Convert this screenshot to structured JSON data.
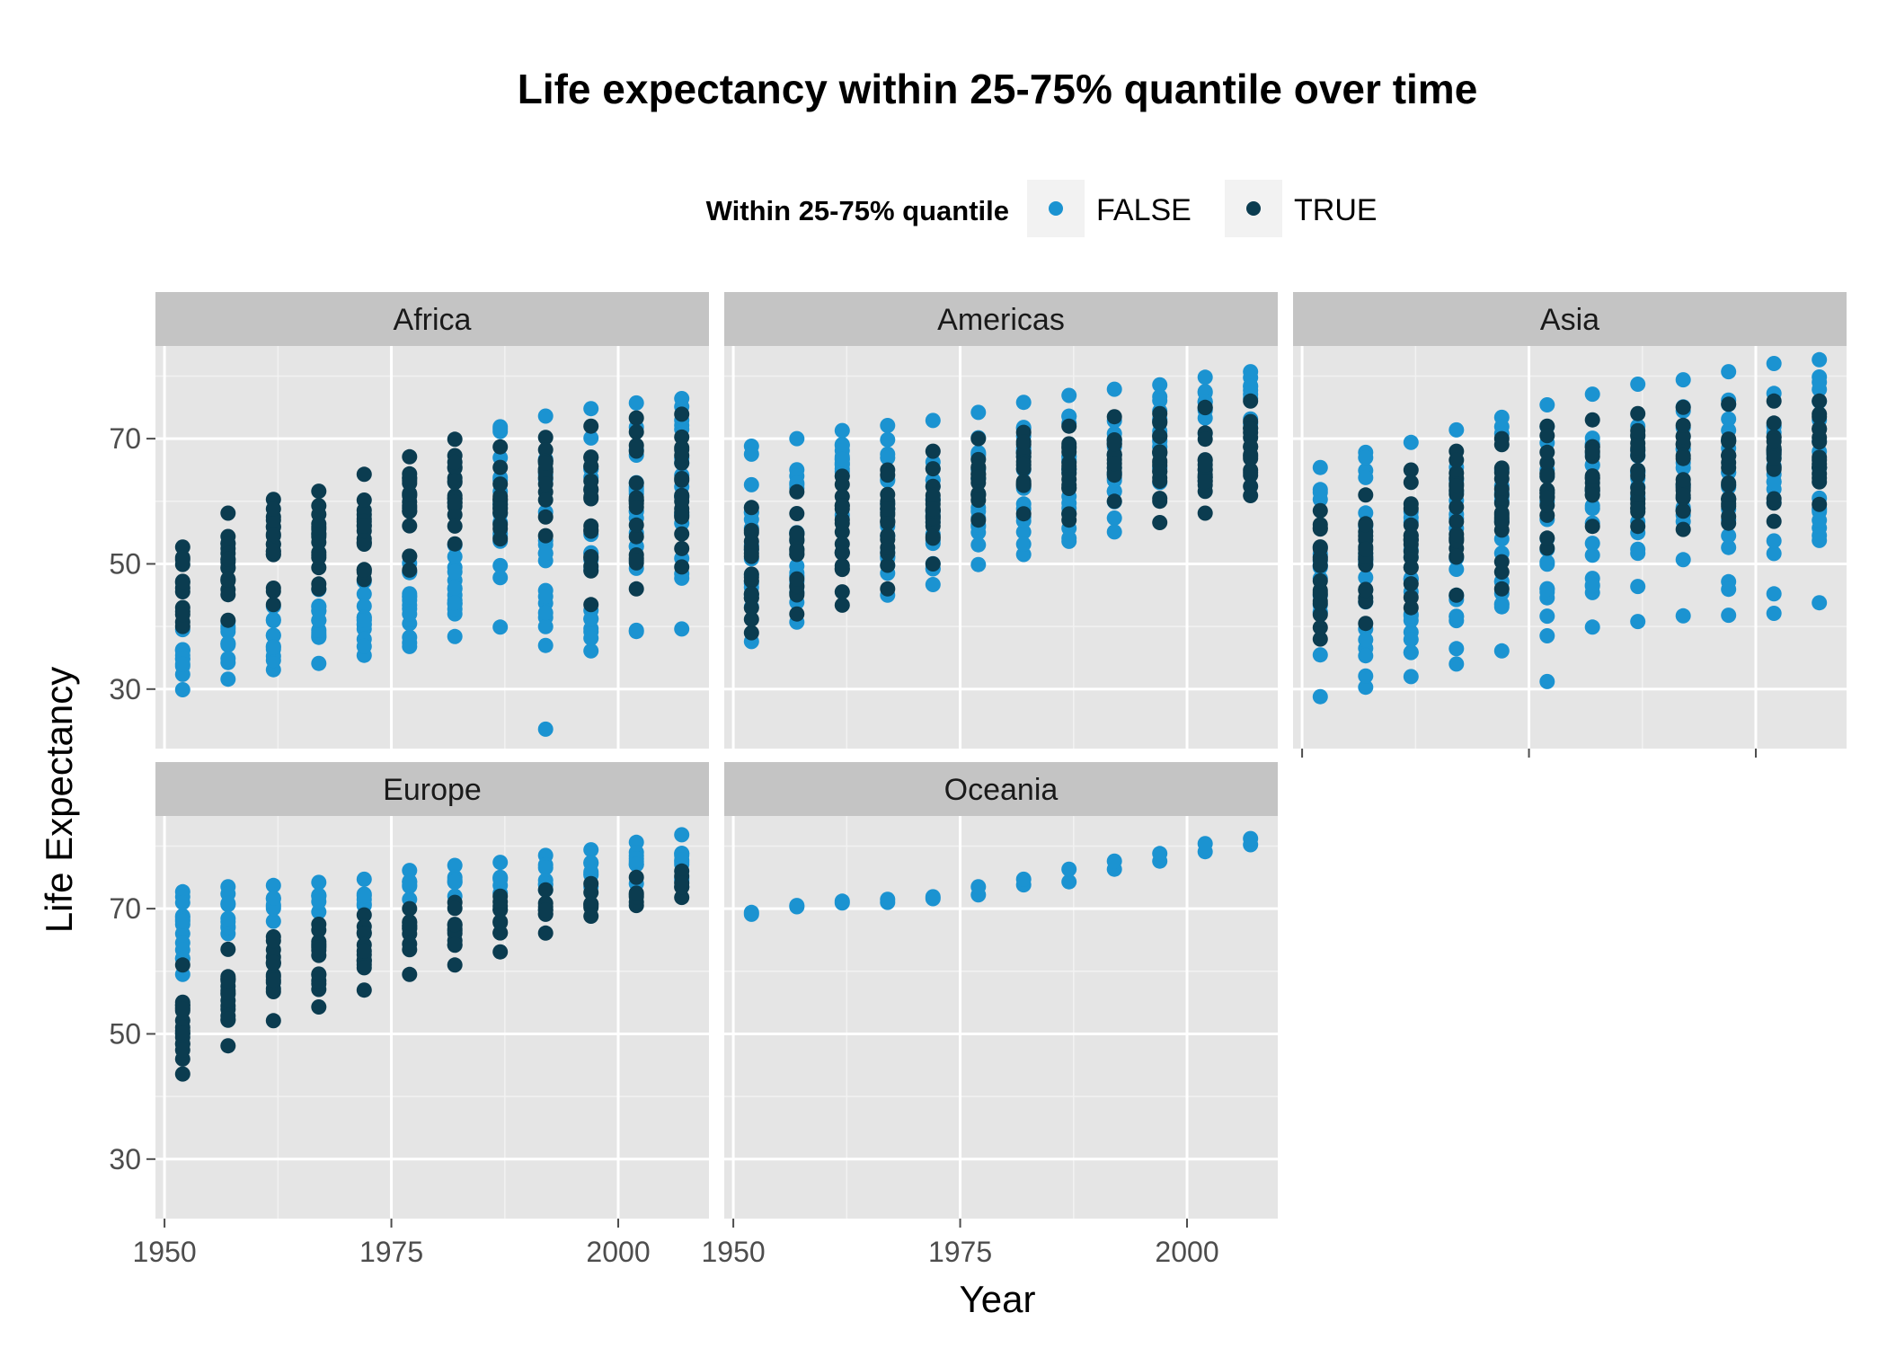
{
  "chart_data": {
    "type": "scatter",
    "title": "Life expectancy within 25-75% quantile over time",
    "xlabel": "Year",
    "ylabel": "Life Expectancy",
    "xlim": [
      1949,
      2010
    ],
    "ylim": [
      20.5,
      84.8
    ],
    "x_ticks": [
      "1950",
      "1975",
      "2000"
    ],
    "y_ticks": [
      "30",
      "50",
      "70"
    ],
    "x_tick_values": [
      1950,
      1975,
      2000
    ],
    "y_tick_values": [
      30,
      50,
      70
    ],
    "grid": true,
    "legend": {
      "title": "Within 25-75% quantile",
      "position": "top",
      "entries": [
        {
          "label": "FALSE",
          "color": "#1b93d1"
        },
        {
          "label": "TRUE",
          "color": "#0b3c50"
        }
      ]
    },
    "colors": {
      "FALSE": "#1b93d1",
      "TRUE": "#0b3c50",
      "panel_bg": "#e5e5e5",
      "strip_bg": "#c4c4c4"
    },
    "years": [
      1952,
      1957,
      1962,
      1967,
      1972,
      1977,
      1982,
      1987,
      1992,
      1997,
      2002,
      2007
    ],
    "facets": [
      {
        "name": "Africa",
        "false_ranges": [
          [
            29.9,
            39.5
          ],
          [
            31.6,
            40.8
          ],
          [
            33.1,
            43.2
          ],
          [
            34.1,
            45.9
          ],
          [
            35.4,
            47.2
          ],
          [
            36.8,
            50.1
          ],
          [
            38.4,
            53.0
          ],
          [
            39.9,
            71.9
          ],
          [
            23.6,
            73.6
          ],
          [
            36.1,
            74.8
          ],
          [
            39.2,
            75.7
          ],
          [
            39.6,
            76.4
          ]
        ],
        "true_ranges": [
          [
            40.0,
            52.7
          ],
          [
            41.0,
            58.1
          ],
          [
            43.5,
            60.3
          ],
          [
            46.0,
            61.6
          ],
          [
            47.5,
            64.3
          ],
          [
            49.0,
            67.1
          ],
          [
            53.2,
            69.9
          ],
          [
            54.0,
            68.7
          ],
          [
            54.5,
            70.2
          ],
          [
            43.5,
            72.0
          ],
          [
            46.0,
            73.3
          ],
          [
            49.5,
            73.9
          ]
        ]
      },
      {
        "name": "Americas",
        "false_ranges": [
          [
            37.6,
            68.8
          ],
          [
            40.7,
            70.0
          ],
          [
            57.8,
            71.3
          ],
          [
            45.0,
            72.1
          ],
          [
            46.7,
            72.9
          ],
          [
            49.9,
            74.2
          ],
          [
            51.5,
            75.8
          ],
          [
            53.6,
            76.9
          ],
          [
            55.1,
            77.9
          ],
          [
            63.0,
            78.6
          ],
          [
            70.8,
            79.8
          ],
          [
            72.4,
            80.7
          ]
        ],
        "true_ranges": [
          [
            39.0,
            59.0
          ],
          [
            42.0,
            61.5
          ],
          [
            43.4,
            64.0
          ],
          [
            46.0,
            65.0
          ],
          [
            50.0,
            68.0
          ],
          [
            57.0,
            70.0
          ],
          [
            58.0,
            71.0
          ],
          [
            57.0,
            72.0
          ],
          [
            60.0,
            73.5
          ],
          [
            56.6,
            74.0
          ],
          [
            58.1,
            75.0
          ],
          [
            60.9,
            76.0
          ]
        ]
      },
      {
        "name": "Asia",
        "false_ranges": [
          [
            28.8,
            65.4
          ],
          [
            30.3,
            67.8
          ],
          [
            32.0,
            69.4
          ],
          [
            34.0,
            71.4
          ],
          [
            36.1,
            73.4
          ],
          [
            31.2,
            75.4
          ],
          [
            39.9,
            77.1
          ],
          [
            40.8,
            78.7
          ],
          [
            41.7,
            79.4
          ],
          [
            41.8,
            80.7
          ],
          [
            42.1,
            82.0
          ],
          [
            43.8,
            82.6
          ]
        ],
        "true_ranges": [
          [
            38.0,
            58.5
          ],
          [
            40.5,
            61.0
          ],
          [
            43.0,
            65.0
          ],
          [
            45.0,
            68.0
          ],
          [
            46.0,
            70.0
          ],
          [
            52.5,
            72.0
          ],
          [
            56.0,
            73.0
          ],
          [
            56.0,
            74.0
          ],
          [
            55.5,
            75.0
          ],
          [
            56.5,
            75.5
          ],
          [
            56.8,
            76.0
          ],
          [
            59.5,
            76.0
          ]
        ]
      },
      {
        "name": "Europe",
        "false_ranges": [
          [
            59.5,
            72.7
          ],
          [
            66.0,
            73.5
          ],
          [
            68.0,
            73.7
          ],
          [
            69.5,
            74.2
          ],
          [
            70.5,
            74.7
          ],
          [
            71.5,
            76.1
          ],
          [
            72.0,
            76.9
          ],
          [
            72.5,
            77.4
          ],
          [
            73.0,
            78.5
          ],
          [
            73.5,
            79.4
          ],
          [
            74.0,
            80.6
          ],
          [
            74.5,
            81.8
          ]
        ],
        "true_ranges": [
          [
            43.6,
            61.0
          ],
          [
            48.1,
            63.5
          ],
          [
            52.1,
            65.5
          ],
          [
            54.3,
            67.5
          ],
          [
            57.0,
            69.0
          ],
          [
            59.5,
            70.0
          ],
          [
            61.0,
            71.0
          ],
          [
            63.1,
            72.0
          ],
          [
            66.1,
            73.0
          ],
          [
            68.8,
            74.0
          ],
          [
            70.5,
            75.0
          ],
          [
            71.8,
            76.0
          ]
        ]
      },
      {
        "name": "Oceania",
        "false_ranges": [
          [
            69.1,
            69.4
          ],
          [
            70.3,
            70.5
          ],
          [
            70.9,
            71.2
          ],
          [
            71.0,
            71.5
          ],
          [
            71.6,
            71.9
          ],
          [
            72.2,
            73.5
          ],
          [
            73.8,
            74.7
          ],
          [
            74.3,
            76.3
          ],
          [
            76.3,
            77.6
          ],
          [
            77.6,
            78.8
          ],
          [
            79.1,
            80.4
          ],
          [
            80.2,
            81.2
          ]
        ],
        "true_ranges": []
      }
    ]
  }
}
